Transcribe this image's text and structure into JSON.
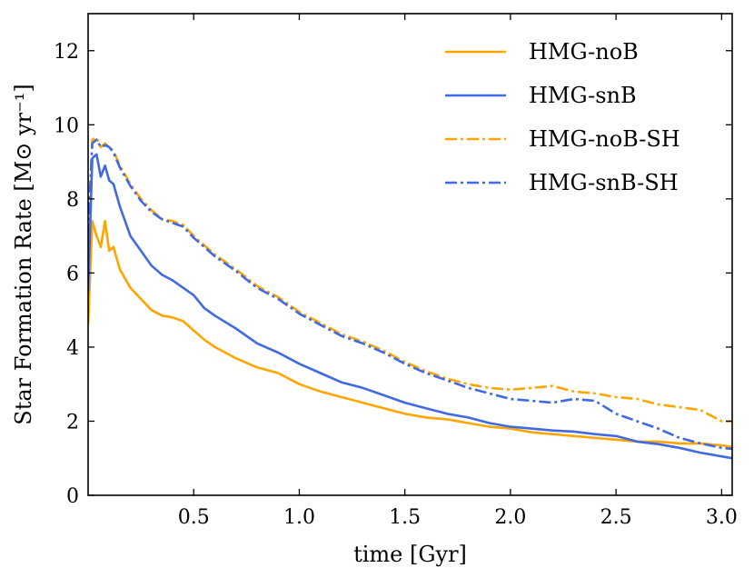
{
  "chart_data": {
    "type": "line",
    "title": "",
    "xlabel": "time [Gyr]",
    "ylabel": "Star Formation Rate [M⊙ yr⁻¹]",
    "xlim": [
      0.0,
      3.05
    ],
    "ylim": [
      0,
      13
    ],
    "xticks": [
      0.5,
      1.0,
      1.5,
      2.0,
      2.5,
      3.0
    ],
    "xtick_labels": [
      "0.5",
      "1.0",
      "1.5",
      "2.0",
      "2.5",
      "3.0"
    ],
    "yticks": [
      0,
      2,
      4,
      6,
      8,
      10,
      12
    ],
    "ytick_labels": [
      "0",
      "2",
      "4",
      "6",
      "8",
      "10",
      "12"
    ],
    "grid": false,
    "legend_position": "top-right",
    "series": [
      {
        "name": "HMG-noB",
        "color": "#FFA500",
        "style": "solid",
        "x": [
          0.0,
          0.02,
          0.04,
          0.06,
          0.08,
          0.1,
          0.12,
          0.15,
          0.2,
          0.25,
          0.3,
          0.35,
          0.4,
          0.45,
          0.5,
          0.55,
          0.6,
          0.7,
          0.8,
          0.9,
          1.0,
          1.1,
          1.2,
          1.3,
          1.4,
          1.5,
          1.6,
          1.7,
          1.8,
          1.9,
          2.0,
          2.1,
          2.2,
          2.3,
          2.4,
          2.5,
          2.6,
          2.7,
          2.8,
          2.9,
          3.0,
          3.05
        ],
        "values": [
          4.6,
          7.4,
          7.0,
          6.7,
          7.4,
          6.6,
          6.7,
          6.1,
          5.6,
          5.3,
          5.0,
          4.85,
          4.8,
          4.7,
          4.45,
          4.2,
          4.0,
          3.7,
          3.45,
          3.3,
          3.0,
          2.8,
          2.65,
          2.5,
          2.35,
          2.2,
          2.1,
          2.05,
          1.95,
          1.85,
          1.8,
          1.7,
          1.65,
          1.6,
          1.55,
          1.5,
          1.45,
          1.45,
          1.4,
          1.4,
          1.35,
          1.3
        ]
      },
      {
        "name": "HMG-snB",
        "color": "#4169E1",
        "style": "solid",
        "x": [
          0.0,
          0.02,
          0.04,
          0.06,
          0.08,
          0.1,
          0.12,
          0.15,
          0.2,
          0.25,
          0.3,
          0.35,
          0.4,
          0.45,
          0.5,
          0.55,
          0.6,
          0.7,
          0.8,
          0.9,
          1.0,
          1.1,
          1.2,
          1.3,
          1.4,
          1.5,
          1.6,
          1.7,
          1.8,
          1.9,
          2.0,
          2.1,
          2.2,
          2.3,
          2.4,
          2.5,
          2.6,
          2.7,
          2.8,
          2.9,
          3.0,
          3.05
        ],
        "values": [
          5.5,
          9.1,
          9.2,
          8.6,
          8.9,
          8.5,
          8.4,
          7.8,
          7.0,
          6.6,
          6.2,
          5.95,
          5.8,
          5.6,
          5.4,
          5.05,
          4.85,
          4.5,
          4.1,
          3.85,
          3.55,
          3.3,
          3.05,
          2.9,
          2.7,
          2.5,
          2.35,
          2.2,
          2.1,
          1.95,
          1.85,
          1.8,
          1.75,
          1.72,
          1.65,
          1.6,
          1.45,
          1.38,
          1.28,
          1.15,
          1.05,
          1.0
        ]
      },
      {
        "name": "HMG-noB-SH",
        "color": "#FFA500",
        "style": "dashdot",
        "x": [
          0.0,
          0.02,
          0.04,
          0.06,
          0.08,
          0.1,
          0.12,
          0.15,
          0.2,
          0.25,
          0.3,
          0.35,
          0.4,
          0.45,
          0.5,
          0.55,
          0.6,
          0.7,
          0.8,
          0.9,
          1.0,
          1.1,
          1.2,
          1.3,
          1.4,
          1.5,
          1.6,
          1.7,
          1.8,
          1.9,
          2.0,
          2.1,
          2.2,
          2.3,
          2.4,
          2.5,
          2.6,
          2.7,
          2.8,
          2.9,
          3.0,
          3.05
        ],
        "values": [
          7.0,
          9.6,
          9.65,
          9.4,
          9.5,
          9.4,
          9.3,
          8.9,
          8.4,
          8.0,
          7.7,
          7.45,
          7.4,
          7.3,
          7.0,
          6.75,
          6.5,
          6.1,
          5.65,
          5.35,
          4.95,
          4.65,
          4.35,
          4.15,
          3.9,
          3.6,
          3.35,
          3.15,
          3.0,
          2.9,
          2.85,
          2.9,
          2.95,
          2.8,
          2.75,
          2.65,
          2.6,
          2.45,
          2.38,
          2.3,
          2.0,
          2.0
        ]
      },
      {
        "name": "HMG-snB-SH",
        "color": "#4169E1",
        "style": "dashdot",
        "x": [
          0.0,
          0.02,
          0.04,
          0.06,
          0.08,
          0.1,
          0.12,
          0.15,
          0.2,
          0.25,
          0.3,
          0.35,
          0.4,
          0.45,
          0.5,
          0.55,
          0.6,
          0.7,
          0.8,
          0.9,
          1.0,
          1.1,
          1.2,
          1.3,
          1.4,
          1.5,
          1.6,
          1.7,
          1.8,
          1.9,
          2.0,
          2.1,
          2.2,
          2.3,
          2.4,
          2.5,
          2.6,
          2.7,
          2.8,
          2.9,
          3.0,
          3.05
        ],
        "values": [
          7.0,
          9.5,
          9.6,
          9.4,
          9.45,
          9.4,
          9.25,
          8.85,
          8.35,
          7.95,
          7.65,
          7.45,
          7.35,
          7.25,
          6.95,
          6.7,
          6.45,
          6.05,
          5.6,
          5.3,
          4.9,
          4.6,
          4.3,
          4.1,
          3.85,
          3.55,
          3.3,
          3.1,
          2.9,
          2.75,
          2.6,
          2.55,
          2.5,
          2.6,
          2.55,
          2.2,
          2.0,
          1.8,
          1.55,
          1.4,
          1.28,
          1.25
        ]
      }
    ]
  }
}
